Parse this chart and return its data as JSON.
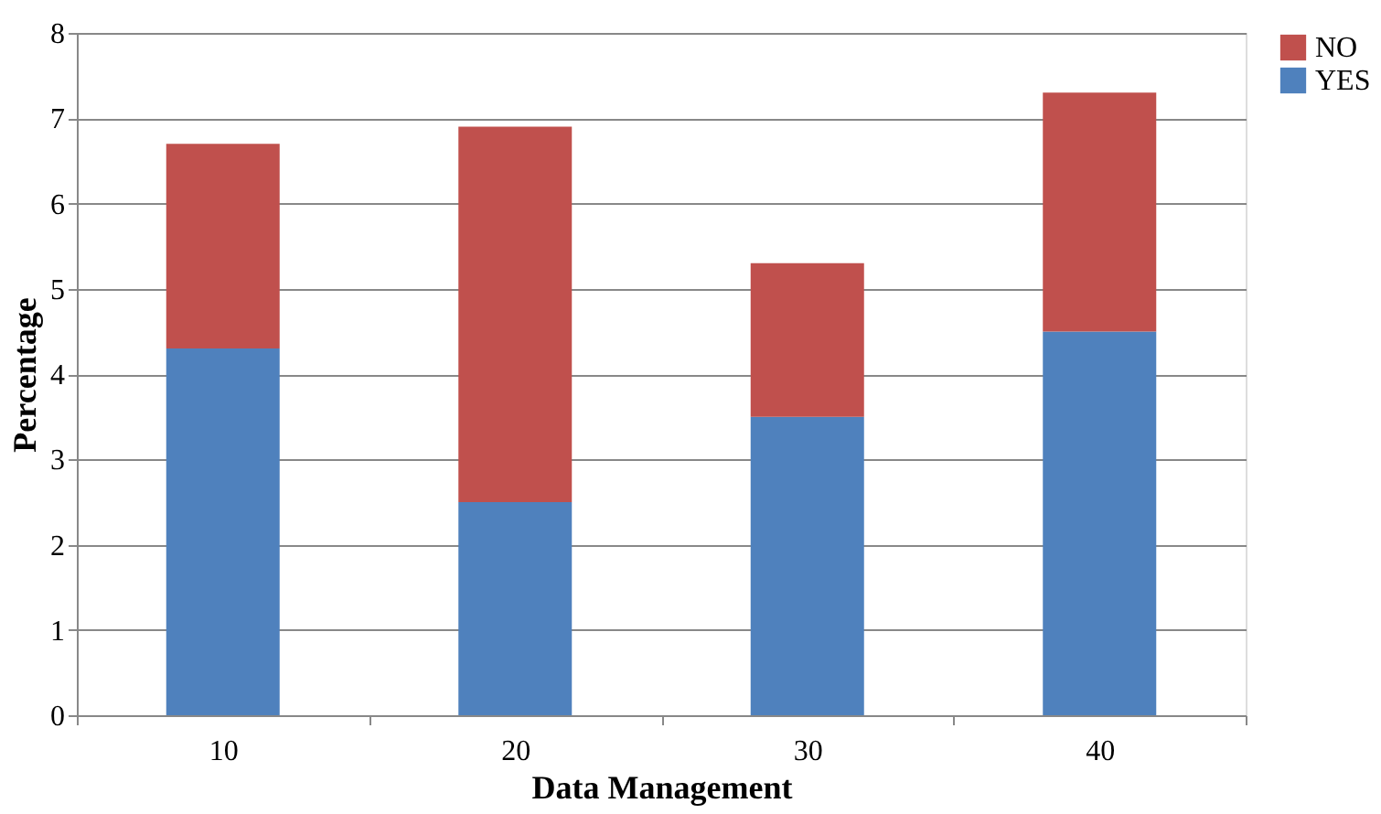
{
  "chart_data": {
    "type": "bar",
    "stacked": true,
    "xlabel": "Data Management",
    "ylabel": "Percentage",
    "categories": [
      "10",
      "20",
      "30",
      "40"
    ],
    "series": [
      {
        "name": "YES",
        "color": "#4f81bd",
        "values": [
          4.3,
          2.5,
          3.5,
          4.5
        ]
      },
      {
        "name": "NO",
        "color": "#c0504d",
        "values": [
          2.4,
          4.4,
          1.8,
          2.8
        ]
      }
    ],
    "ylim": [
      0,
      8
    ],
    "yticks": [
      0,
      1,
      2,
      3,
      4,
      5,
      6,
      7,
      8
    ],
    "grid": "y",
    "legend": "right"
  }
}
